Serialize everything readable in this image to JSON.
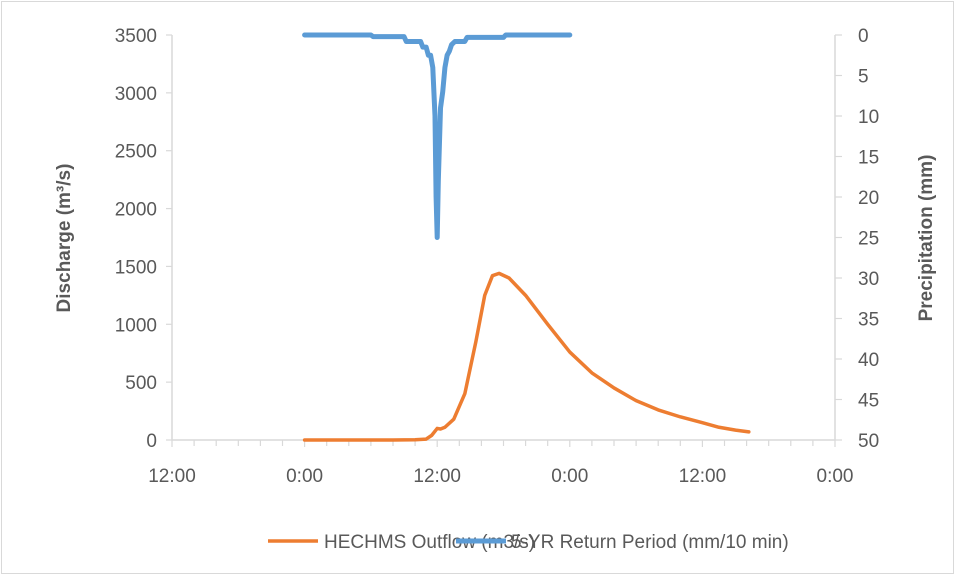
{
  "chart_data": {
    "type": "line",
    "title": "",
    "xlabel": "",
    "ylabel_left": "Discharge (m³/s)",
    "ylabel_right": "Precipitation (mm)",
    "x_tick_labels": [
      "12:00",
      "0:00",
      "12:00",
      "0:00",
      "12:00",
      "0:00"
    ],
    "x_range_hours": [
      -12,
      48
    ],
    "y_left": {
      "range": [
        0,
        3500
      ],
      "ticks": [
        0,
        500,
        1000,
        1500,
        2000,
        2500,
        3000,
        3500
      ]
    },
    "y_right": {
      "range": [
        0,
        50
      ],
      "reversed": true,
      "ticks": [
        0,
        5,
        10,
        15,
        20,
        25,
        30,
        35,
        40,
        45,
        50
      ]
    },
    "grid": false,
    "legend_position": "bottom",
    "series": [
      {
        "name": "HECHMS Outflow (m3/s)",
        "axis": "left",
        "color": "#ed7d31",
        "points": [
          [
            0,
            0
          ],
          [
            8,
            0
          ],
          [
            10,
            2
          ],
          [
            11,
            8
          ],
          [
            11.5,
            40
          ],
          [
            12,
            100
          ],
          [
            12.3,
            95
          ],
          [
            12.7,
            110
          ],
          [
            13.5,
            180
          ],
          [
            14.5,
            400
          ],
          [
            15.5,
            850
          ],
          [
            16.3,
            1250
          ],
          [
            17,
            1420
          ],
          [
            17.6,
            1440
          ],
          [
            18.5,
            1400
          ],
          [
            20,
            1250
          ],
          [
            22,
            1000
          ],
          [
            24,
            760
          ],
          [
            26,
            580
          ],
          [
            28,
            450
          ],
          [
            30,
            340
          ],
          [
            32,
            260
          ],
          [
            34,
            200
          ],
          [
            36,
            150
          ],
          [
            37.5,
            110
          ],
          [
            39,
            85
          ],
          [
            40.2,
            70
          ]
        ]
      },
      {
        "name": "5-YR Return Period (mm/10 min)",
        "axis": "right",
        "color": "#5b9bd5",
        "points": [
          [
            0,
            0
          ],
          [
            6,
            0
          ],
          [
            6.2,
            0.2
          ],
          [
            9,
            0.2
          ],
          [
            9.2,
            0.8
          ],
          [
            10.5,
            0.8
          ],
          [
            10.7,
            1.5
          ],
          [
            11,
            1.5
          ],
          [
            11.2,
            2.5
          ],
          [
            11.4,
            2.5
          ],
          [
            11.6,
            4
          ],
          [
            11.8,
            10
          ],
          [
            11.9,
            20
          ],
          [
            12,
            25
          ],
          [
            12.1,
            18
          ],
          [
            12.3,
            9
          ],
          [
            12.5,
            7
          ],
          [
            12.7,
            4
          ],
          [
            12.9,
            2.5
          ],
          [
            13.1,
            2
          ],
          [
            13.3,
            1.2
          ],
          [
            13.6,
            0.8
          ],
          [
            14.5,
            0.8
          ],
          [
            14.7,
            0.3
          ],
          [
            18,
            0.3
          ],
          [
            18.2,
            0
          ],
          [
            24,
            0
          ]
        ]
      }
    ]
  }
}
